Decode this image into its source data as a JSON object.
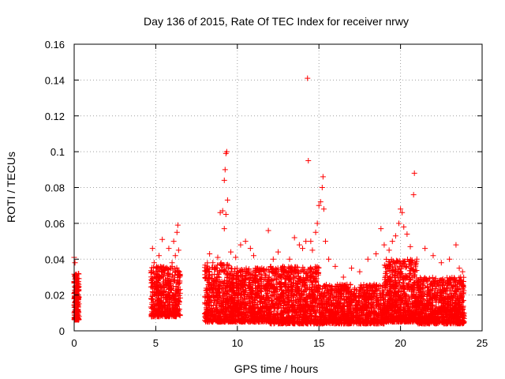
{
  "chart_data": {
    "type": "scatter",
    "title": "Day 136 of 2015, Rate Of TEC Index for receiver nrwy",
    "xlabel": "GPS time / hours",
    "ylabel": "ROTI / TECUs",
    "xlim": [
      0,
      25
    ],
    "ylim": [
      0,
      0.16
    ],
    "xticks": [
      "0",
      "5",
      "10",
      "15",
      "20",
      "25"
    ],
    "yticks": [
      "0",
      "0.02",
      "0.04",
      "0.06",
      "0.08",
      "0.1",
      "0.12",
      "0.14",
      "0.16"
    ],
    "grid": true,
    "marker": "plus",
    "color": "#ff0000",
    "series": [
      {
        "points": [
          [
            0.0,
            0.041
          ],
          [
            0.05,
            0.038
          ],
          [
            0.1,
            0.03
          ],
          [
            0.12,
            0.022
          ],
          [
            0.15,
            0.016
          ],
          [
            0.18,
            0.01
          ],
          [
            0.2,
            0.025
          ],
          [
            0.25,
            0.014
          ],
          [
            0.3,
            0.008
          ],
          [
            4.8,
            0.046
          ],
          [
            4.9,
            0.038
          ],
          [
            5.0,
            0.03
          ],
          [
            5.2,
            0.042
          ],
          [
            5.4,
            0.051
          ],
          [
            5.5,
            0.024
          ],
          [
            5.6,
            0.035
          ],
          [
            5.8,
            0.046
          ],
          [
            6.0,
            0.038
          ],
          [
            6.1,
            0.05
          ],
          [
            6.2,
            0.042
          ],
          [
            6.3,
            0.055
          ],
          [
            6.35,
            0.059
          ],
          [
            6.4,
            0.045
          ],
          [
            6.45,
            0.03
          ],
          [
            8.1,
            0.03
          ],
          [
            8.3,
            0.043
          ],
          [
            8.5,
            0.038
          ],
          [
            8.8,
            0.041
          ],
          [
            8.95,
            0.066
          ],
          [
            9.1,
            0.067
          ],
          [
            9.2,
            0.084
          ],
          [
            9.25,
            0.09
          ],
          [
            9.3,
            0.099
          ],
          [
            9.35,
            0.1
          ],
          [
            9.4,
            0.073
          ],
          [
            9.3,
            0.065
          ],
          [
            9.2,
            0.057
          ],
          [
            9.6,
            0.044
          ],
          [
            9.9,
            0.041
          ],
          [
            10.2,
            0.048
          ],
          [
            10.5,
            0.05
          ],
          [
            10.8,
            0.046
          ],
          [
            11.0,
            0.042
          ],
          [
            11.5,
            0.035
          ],
          [
            11.9,
            0.056
          ],
          [
            12.2,
            0.04
          ],
          [
            12.5,
            0.044
          ],
          [
            12.8,
            0.036
          ],
          [
            13.2,
            0.04
          ],
          [
            13.5,
            0.052
          ],
          [
            13.8,
            0.048
          ],
          [
            14.0,
            0.046
          ],
          [
            14.2,
            0.05
          ],
          [
            14.3,
            0.141
          ],
          [
            14.35,
            0.095
          ],
          [
            14.5,
            0.05
          ],
          [
            14.6,
            0.045
          ],
          [
            14.8,
            0.055
          ],
          [
            14.9,
            0.06
          ],
          [
            15.0,
            0.07
          ],
          [
            15.1,
            0.072
          ],
          [
            15.2,
            0.08
          ],
          [
            15.25,
            0.086
          ],
          [
            15.3,
            0.068
          ],
          [
            15.4,
            0.05
          ],
          [
            15.6,
            0.04
          ],
          [
            16.0,
            0.036
          ],
          [
            16.5,
            0.03
          ],
          [
            17.0,
            0.035
          ],
          [
            17.5,
            0.033
          ],
          [
            18.0,
            0.04
          ],
          [
            18.5,
            0.043
          ],
          [
            18.8,
            0.057
          ],
          [
            19.0,
            0.048
          ],
          [
            19.3,
            0.045
          ],
          [
            19.5,
            0.05
          ],
          [
            19.7,
            0.053
          ],
          [
            19.9,
            0.06
          ],
          [
            20.0,
            0.068
          ],
          [
            20.1,
            0.066
          ],
          [
            20.2,
            0.058
          ],
          [
            20.4,
            0.054
          ],
          [
            20.6,
            0.047
          ],
          [
            20.8,
            0.076
          ],
          [
            20.85,
            0.088
          ],
          [
            21.0,
            0.04
          ],
          [
            21.5,
            0.046
          ],
          [
            22.0,
            0.042
          ],
          [
            22.5,
            0.038
          ],
          [
            23.0,
            0.04
          ],
          [
            23.4,
            0.048
          ],
          [
            23.6,
            0.035
          ],
          [
            23.8,
            0.033
          ]
        ]
      }
    ],
    "clusters": [
      {
        "x": [
          0.0,
          0.3
        ],
        "y": [
          0.006,
          0.032
        ],
        "n": 180
      },
      {
        "x": [
          4.7,
          6.5
        ],
        "y": [
          0.008,
          0.036
        ],
        "n": 500
      },
      {
        "x": [
          8.0,
          9.5
        ],
        "y": [
          0.005,
          0.038
        ],
        "n": 450
      },
      {
        "x": [
          9.5,
          12.0
        ],
        "y": [
          0.005,
          0.035
        ],
        "n": 800
      },
      {
        "x": [
          12.0,
          15.0
        ],
        "y": [
          0.004,
          0.036
        ],
        "n": 900
      },
      {
        "x": [
          15.0,
          19.0
        ],
        "y": [
          0.004,
          0.026
        ],
        "n": 1000
      },
      {
        "x": [
          19.0,
          21.0
        ],
        "y": [
          0.005,
          0.04
        ],
        "n": 700
      },
      {
        "x": [
          21.0,
          23.9
        ],
        "y": [
          0.004,
          0.03
        ],
        "n": 900
      }
    ]
  }
}
